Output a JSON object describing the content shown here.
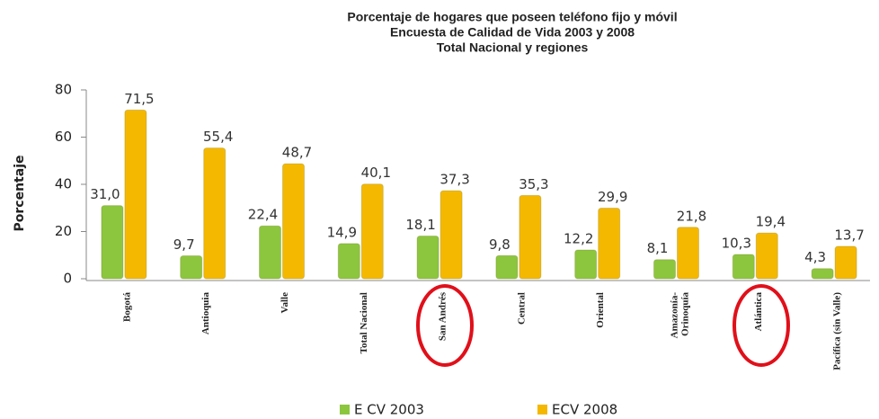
{
  "chart_data": {
    "type": "bar",
    "title": [
      "Porcentaje de hogares que poseen teléfono fijo y móvil",
      "Encuesta de Calidad de Vida 2003 y 2008",
      "Total Nacional y regiones"
    ],
    "y_label": "Porcentaje",
    "categories": [
      "Bogotá",
      "Antioquia",
      "Valle",
      "Total Nacional",
      "San Andrés",
      "Central",
      "Oriental",
      "Amazonía-\nOrinoquía",
      "Atlántica",
      "Pacífica (sin Valle)"
    ],
    "series": [
      {
        "name": "E CV 2003",
        "color": "#8cc63f",
        "values": [
          31.0,
          9.7,
          22.4,
          14.9,
          18.1,
          9.8,
          12.2,
          8.1,
          10.3,
          4.3
        ],
        "value_labels": [
          "31,0",
          "9,7",
          "22,4",
          "14,9",
          "18,1",
          "9,8",
          "12,2",
          "8,1",
          "10,3",
          "4,3"
        ]
      },
      {
        "name": "ECV 2008",
        "color": "#f5b800",
        "values": [
          71.5,
          55.4,
          48.7,
          40.1,
          37.3,
          35.3,
          29.9,
          21.8,
          19.4,
          13.7
        ],
        "value_labels": [
          "71,5",
          "55,4",
          "48,7",
          "40,1",
          "37,3",
          "35,3",
          "29,9",
          "21,8",
          "19,4",
          "13,7"
        ]
      }
    ],
    "ylim": [
      0,
      80
    ],
    "yticks": [
      0,
      20,
      40,
      60,
      80
    ],
    "grid": false
  }
}
